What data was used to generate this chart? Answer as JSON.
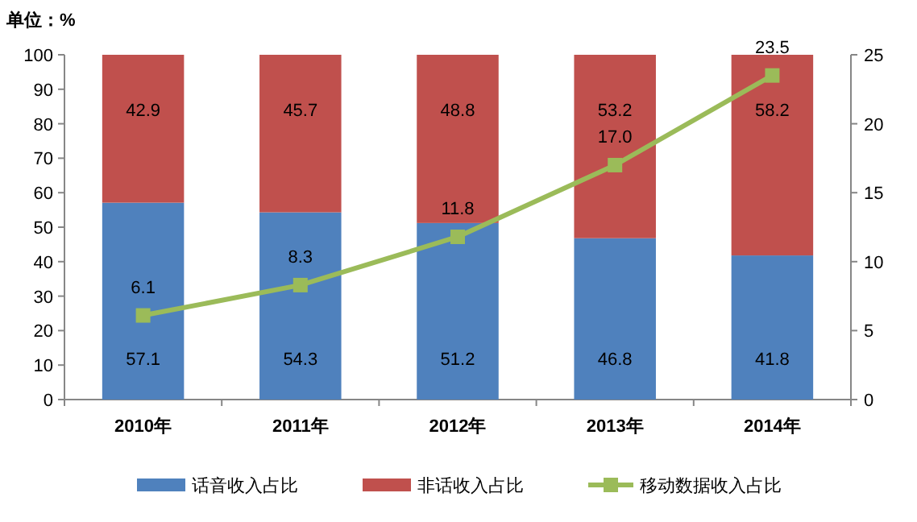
{
  "chart_data": {
    "type": "bar",
    "stacked": true,
    "categories": [
      "2010年",
      "2011年",
      "2012年",
      "2013年",
      "2014年"
    ],
    "series": [
      {
        "name": "话音收入占比",
        "color": "#4f81bd",
        "values": [
          57.1,
          54.3,
          51.2,
          46.8,
          41.8
        ],
        "value_labels": [
          "57.1",
          "54.3",
          "51.2",
          "46.8",
          "41.8"
        ]
      },
      {
        "name": "非话收入占比",
        "color": "#c0504d",
        "values": [
          42.9,
          45.7,
          48.8,
          53.2,
          58.2
        ],
        "value_labels": [
          "42.9",
          "45.7",
          "48.8",
          "53.2",
          "58.2"
        ]
      },
      {
        "name": "移动数据收入占比",
        "type": "line",
        "axis": "y2",
        "color": "#9bbb59",
        "marker": "square",
        "values": [
          6.1,
          8.3,
          11.8,
          17.0,
          23.5
        ],
        "value_labels": [
          "6.1",
          "8.3",
          "11.8",
          "17.0",
          "23.5"
        ]
      }
    ],
    "ylim": [
      0,
      100
    ],
    "yticks": [
      0,
      10,
      20,
      30,
      40,
      50,
      60,
      70,
      80,
      90,
      100
    ],
    "y2lim": [
      0,
      25
    ],
    "y2ticks": [
      0,
      5,
      10,
      15,
      20,
      25
    ],
    "annotations": [
      "单位：%"
    ],
    "legend": "bottom",
    "grid": false
  }
}
